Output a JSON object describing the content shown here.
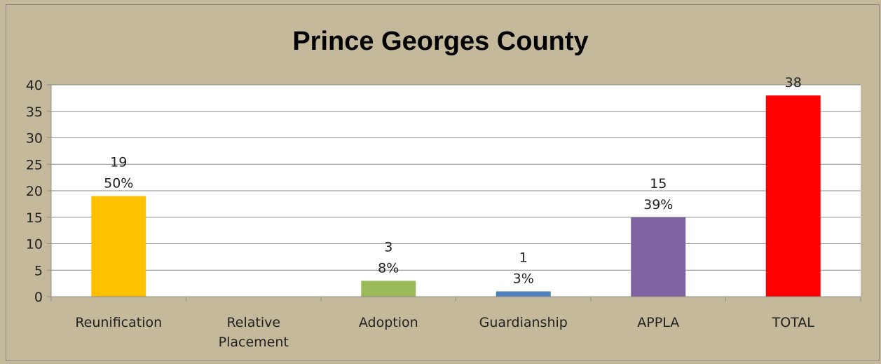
{
  "chart_data": {
    "type": "bar",
    "title": "Prince Georges County",
    "categories": [
      {
        "lines": [
          "Reunification"
        ]
      },
      {
        "lines": [
          "Relative",
          "Placement"
        ]
      },
      {
        "lines": [
          "Adoption"
        ]
      },
      {
        "lines": [
          "Guardianship"
        ]
      },
      {
        "lines": [
          "APPLA"
        ]
      },
      {
        "lines": [
          "TOTAL"
        ]
      }
    ],
    "values": [
      19,
      0,
      3,
      1,
      15,
      38
    ],
    "colors": [
      "#ffc000",
      "#c0504d",
      "#9bbb59",
      "#4f81bd",
      "#8064a2",
      "#ff0000"
    ],
    "data_labels": [
      {
        "lines": [
          "19",
          "50%"
        ]
      },
      null,
      {
        "lines": [
          "3",
          "8%"
        ]
      },
      {
        "lines": [
          "1",
          "3%"
        ]
      },
      {
        "lines": [
          "15",
          "39%"
        ]
      },
      {
        "lines": [
          "38"
        ]
      }
    ],
    "ylim": [
      0,
      40
    ],
    "yticks": [
      "0",
      "5",
      "10",
      "15",
      "20",
      "25",
      "30",
      "35",
      "40"
    ],
    "xlabel": "",
    "ylabel": "",
    "grid": true,
    "legend": "none"
  }
}
